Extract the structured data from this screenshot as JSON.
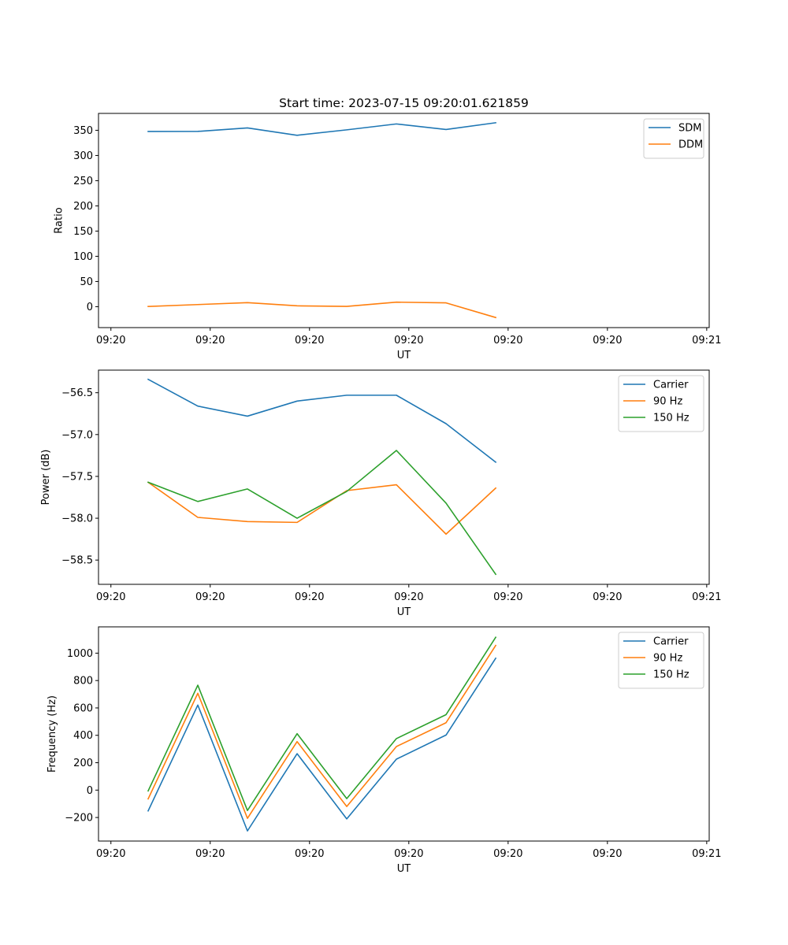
{
  "figure_title": "Start time: 2023-07-15 09:20:01.621859",
  "chart_data": [
    {
      "type": "line",
      "title": "Start time: 2023-07-15 09:20:01.621859",
      "xlabel": "UT",
      "ylabel": "Ratio",
      "x": [
        1,
        2,
        3,
        4,
        5,
        6,
        7,
        8
      ],
      "xlim": [
        0,
        12.3
      ],
      "xticks": [
        {
          "value": 0.25,
          "label": "09:20"
        },
        {
          "value": 2.25,
          "label": "09:20"
        },
        {
          "value": 4.25,
          "label": "09:20"
        },
        {
          "value": 6.25,
          "label": "09:20"
        },
        {
          "value": 8.25,
          "label": "09:20"
        },
        {
          "value": 10.25,
          "label": "09:20"
        },
        {
          "value": 12.25,
          "label": "09:21"
        }
      ],
      "ylim": [
        -41.5,
        383.5
      ],
      "yticks": [
        {
          "value": 0,
          "label": "0"
        },
        {
          "value": 50,
          "label": "50"
        },
        {
          "value": 100,
          "label": "100"
        },
        {
          "value": 150,
          "label": "150"
        },
        {
          "value": 200,
          "label": "200"
        },
        {
          "value": 250,
          "label": "250"
        },
        {
          "value": 300,
          "label": "300"
        },
        {
          "value": 350,
          "label": "350"
        }
      ],
      "legend_position": "top-right",
      "series": [
        {
          "name": "SDM",
          "color": "#1f77b4",
          "values": [
            347.6,
            347.8,
            354.7,
            340.1,
            350.9,
            362.6,
            351.5,
            365.0
          ]
        },
        {
          "name": "DDM",
          "color": "#ff7f0e",
          "values": [
            0.4,
            4.2,
            8.0,
            1.7,
            0.6,
            9.0,
            7.6,
            -21.5
          ]
        }
      ]
    },
    {
      "type": "line",
      "title": "",
      "xlabel": "UT",
      "ylabel": "Power (dB)",
      "x": [
        1,
        2,
        3,
        4,
        5,
        6,
        7,
        8
      ],
      "xlim": [
        0,
        12.3
      ],
      "xticks": [
        {
          "value": 0.25,
          "label": "09:20"
        },
        {
          "value": 2.25,
          "label": "09:20"
        },
        {
          "value": 4.25,
          "label": "09:20"
        },
        {
          "value": 6.25,
          "label": "09:20"
        },
        {
          "value": 8.25,
          "label": "09:20"
        },
        {
          "value": 10.25,
          "label": "09:20"
        },
        {
          "value": 12.25,
          "label": "09:21"
        }
      ],
      "ylim": [
        -58.79,
        -56.23
      ],
      "yticks": [
        {
          "value": -58.5,
          "label": "−58.5"
        },
        {
          "value": -58.0,
          "label": "−58.0"
        },
        {
          "value": -57.5,
          "label": "−57.5"
        },
        {
          "value": -57.0,
          "label": "−57.0"
        },
        {
          "value": -56.5,
          "label": "−56.5"
        }
      ],
      "legend_position": "top-right",
      "series": [
        {
          "name": "Carrier",
          "color": "#1f77b4",
          "values": [
            -56.34,
            -56.66,
            -56.78,
            -56.6,
            -56.53,
            -56.53,
            -56.87,
            -57.33
          ]
        },
        {
          "name": "90 Hz",
          "color": "#ff7f0e",
          "values": [
            -57.57,
            -57.99,
            -58.04,
            -58.05,
            -57.67,
            -57.6,
            -58.19,
            -57.64
          ]
        },
        {
          "name": "150 Hz",
          "color": "#2ca02c",
          "values": [
            -57.57,
            -57.8,
            -57.65,
            -58.0,
            -57.68,
            -57.19,
            -57.82,
            -58.67
          ]
        }
      ]
    },
    {
      "type": "line",
      "title": "",
      "xlabel": "UT",
      "ylabel": "Frequency (Hz)",
      "x": [
        1,
        2,
        3,
        4,
        5,
        6,
        7,
        8
      ],
      "xlim": [
        0,
        12.3
      ],
      "xticks": [
        {
          "value": 0.25,
          "label": "09:20"
        },
        {
          "value": 2.25,
          "label": "09:20"
        },
        {
          "value": 4.25,
          "label": "09:20"
        },
        {
          "value": 6.25,
          "label": "09:20"
        },
        {
          "value": 8.25,
          "label": "09:20"
        },
        {
          "value": 10.25,
          "label": "09:20"
        },
        {
          "value": 12.25,
          "label": "09:21"
        }
      ],
      "ylim": [
        -372,
        1192
      ],
      "yticks": [
        {
          "value": -200,
          "label": "−200"
        },
        {
          "value": 0,
          "label": "0"
        },
        {
          "value": 200,
          "label": "200"
        },
        {
          "value": 400,
          "label": "400"
        },
        {
          "value": 600,
          "label": "600"
        },
        {
          "value": 800,
          "label": "800"
        },
        {
          "value": 1000,
          "label": "1000"
        }
      ],
      "legend_position": "top-right",
      "series": [
        {
          "name": "Carrier",
          "color": "#1f77b4",
          "values": [
            -152,
            621,
            -298,
            266,
            -210,
            226,
            402,
            963
          ]
        },
        {
          "name": "90 Hz",
          "color": "#ff7f0e",
          "values": [
            -64,
            707,
            -206,
            354,
            -120,
            318,
            492,
            1056
          ]
        },
        {
          "name": "150 Hz",
          "color": "#2ca02c",
          "values": [
            -6,
            766,
            -149,
            412,
            -62,
            376,
            551,
            1116
          ]
        }
      ]
    }
  ]
}
